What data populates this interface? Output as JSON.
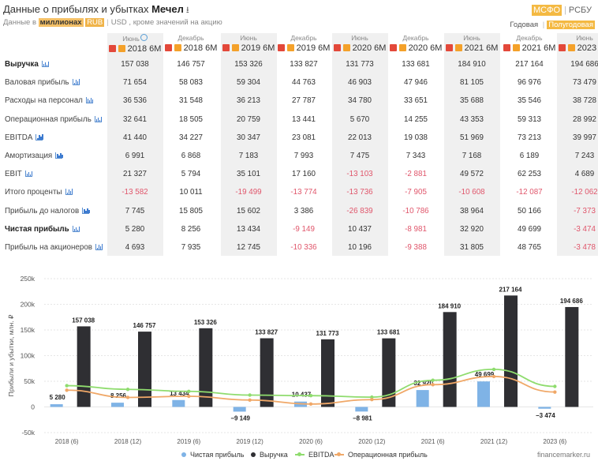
{
  "header": {
    "title_prefix": "Данные о прибылях и убытках",
    "company": "Мечел",
    "download_icon": "download-icon",
    "sub_prefix": "Данные в",
    "unit_active": "миллионах",
    "currency_active": "RUB",
    "currency_other": "USD",
    "sub_suffix": ", кроме значений на акцию"
  },
  "standards": {
    "active": "МСФО",
    "other": "РСБУ"
  },
  "periods": {
    "other": "Годовая",
    "active": "Полугодовая"
  },
  "columns": [
    {
      "month": "Июнь",
      "label": "2018 6M"
    },
    {
      "month": "Декабрь",
      "label": "2018 6M"
    },
    {
      "month": "Июнь",
      "label": "2019 6M"
    },
    {
      "month": "Декабрь",
      "label": "2019 6M"
    },
    {
      "month": "Июнь",
      "label": "2020 6M"
    },
    {
      "month": "Декабрь",
      "label": "2020 6M"
    },
    {
      "month": "Июнь",
      "label": "2021 6M"
    },
    {
      "month": "Декабрь",
      "label": "2021 6M"
    },
    {
      "month": "Июнь",
      "label": "2023 6M"
    }
  ],
  "rows": [
    {
      "label": "Выручка",
      "bold": true,
      "values": [
        "157 038",
        "146 757",
        "153 326",
        "133 827",
        "131 773",
        "133 681",
        "184 910",
        "217 164",
        "194 686"
      ]
    },
    {
      "label": "Валовая прибыль",
      "values": [
        "71 654",
        "58 083",
        "59 304",
        "44 763",
        "46 903",
        "47 946",
        "81 105",
        "96 976",
        "73 479"
      ]
    },
    {
      "label": "Расходы на персонал",
      "values": [
        "36 536",
        "31 548",
        "36 213",
        "27 787",
        "34 780",
        "33 651",
        "35 688",
        "35 546",
        "38 728"
      ]
    },
    {
      "label": "Операционная прибыль",
      "values": [
        "32 641",
        "18 505",
        "20 759",
        "13 441",
        "5 670",
        "14 255",
        "43 353",
        "59 313",
        "28 992"
      ]
    },
    {
      "label": "EBITDA",
      "values": [
        "41 440",
        "34 227",
        "30 347",
        "23 081",
        "22 013",
        "19 038",
        "51 969",
        "73 213",
        "39 997"
      ]
    },
    {
      "label": "Амортизация",
      "values": [
        "6 991",
        "6 868",
        "7 183",
        "7 993",
        "7 475",
        "7 343",
        "7 168",
        "6 189",
        "7 243"
      ]
    },
    {
      "label": "EBIT",
      "values": [
        "21 327",
        "5 794",
        "35 101",
        "17 160",
        "-13 103",
        "-2 881",
        "49 572",
        "62 253",
        "4 689"
      ]
    },
    {
      "label": "Итого проценты",
      "values": [
        "-13 582",
        "10 011",
        "-19 499",
        "-13 774",
        "-13 736",
        "-7 905",
        "-10 608",
        "-12 087",
        "-12 062"
      ]
    },
    {
      "label": "Прибыль до налогов",
      "values": [
        "7 745",
        "15 805",
        "15 602",
        "3 386",
        "-26 839",
        "-10 786",
        "38 964",
        "50 166",
        "-7 373"
      ]
    },
    {
      "label": "Чистая прибыль",
      "bold": true,
      "values": [
        "5 280",
        "8 256",
        "13 434",
        "-9 149",
        "10 437",
        "-8 981",
        "32 920",
        "49 699",
        "-3 474"
      ]
    },
    {
      "label": "Прибыль на акционеров",
      "values": [
        "4 693",
        "7 935",
        "12 745",
        "-10 336",
        "10 196",
        "-9 388",
        "31 805",
        "48 765",
        "-3 478"
      ]
    }
  ],
  "chart_data": {
    "type": "bar",
    "ylabel": "Прибыли и убытки, млн. ₽",
    "ylim": [
      -50000,
      250000
    ],
    "y_ticks": [
      -50000,
      0,
      50000,
      100000,
      150000,
      200000,
      250000
    ],
    "y_tick_labels": [
      "-50k",
      "0",
      "50k",
      "100k",
      "150k",
      "200k",
      "250k"
    ],
    "categories": [
      "2018 (6)",
      "2018 (12)",
      "2019 (6)",
      "2019 (12)",
      "2020 (6)",
      "2020 (12)",
      "2021 (6)",
      "2021 (12)",
      "2023 (6)"
    ],
    "series": [
      {
        "name": "Чистая прибыль",
        "kind": "bar",
        "color": "#7fb3e6",
        "values": [
          5280,
          8256,
          13434,
          -9149,
          10437,
          -8981,
          32920,
          49699,
          -3474
        ],
        "labels": [
          "5 280",
          "8 256",
          "13 434",
          "−9 149",
          "10 437",
          "−8 981",
          "32 920",
          "49 699",
          "−3 474"
        ]
      },
      {
        "name": "Выручка",
        "kind": "bar",
        "color": "#2f2f33",
        "values": [
          157038,
          146757,
          153326,
          133827,
          131773,
          133681,
          184910,
          217164,
          194686
        ],
        "labels": [
          "157 038",
          "146 757",
          "153 326",
          "133 827",
          "131 773",
          "133 681",
          "184 910",
          "217 164",
          "194 686"
        ]
      },
      {
        "name": "EBITDA",
        "kind": "line",
        "color": "#8fdc6e",
        "values": [
          41440,
          34227,
          30347,
          23081,
          22013,
          19038,
          51969,
          73213,
          39997
        ]
      },
      {
        "name": "Операционная прибыль",
        "kind": "line",
        "color": "#f0a868",
        "values": [
          32641,
          18505,
          20759,
          13441,
          5670,
          14255,
          43353,
          59313,
          28992
        ]
      }
    ]
  },
  "legend": [
    "Чистая прибыль",
    "Выручка",
    "EBITDA",
    "Операционная прибыль"
  ],
  "watermark": "financemarker.ru"
}
